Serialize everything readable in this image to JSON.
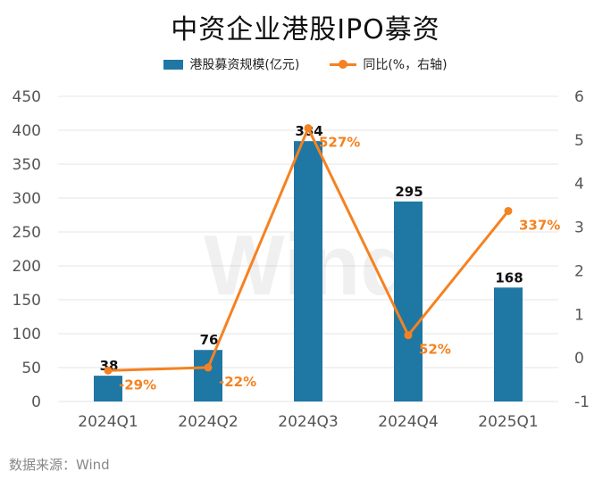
{
  "title": "中资企业港股IPO募资",
  "source": "数据来源：Wind",
  "watermark": "Wind",
  "colors": {
    "bar": "#1f77a4",
    "line": "#f58220",
    "grid": "#e6e6e6",
    "axis_text": "#555555"
  },
  "chart_data": {
    "type": "bar",
    "categories": [
      "2024Q1",
      "2024Q2",
      "2024Q3",
      "2024Q4",
      "2025Q1"
    ],
    "series": [
      {
        "name": "港股募资规模(亿元)",
        "type": "bar",
        "axis": "left",
        "values": [
          38,
          76,
          384,
          295,
          168
        ],
        "labels": [
          "38",
          "76",
          "384",
          "295",
          "168"
        ]
      },
      {
        "name": "同比(%，右轴)",
        "type": "line",
        "axis": "right",
        "values": [
          -0.29,
          -0.22,
          5.27,
          0.52,
          3.37
        ],
        "labels": [
          "-29%",
          "-22%",
          "527%",
          "52%",
          "337%"
        ]
      }
    ],
    "y_left": {
      "min": 0,
      "max": 450,
      "ticks": [
        0,
        50,
        100,
        150,
        200,
        250,
        300,
        350,
        400,
        450
      ]
    },
    "y_right": {
      "min": -1,
      "max": 6,
      "ticks": [
        -1,
        0,
        1,
        2,
        3,
        4,
        5,
        6
      ]
    },
    "grid": true,
    "legend_position": "top"
  }
}
